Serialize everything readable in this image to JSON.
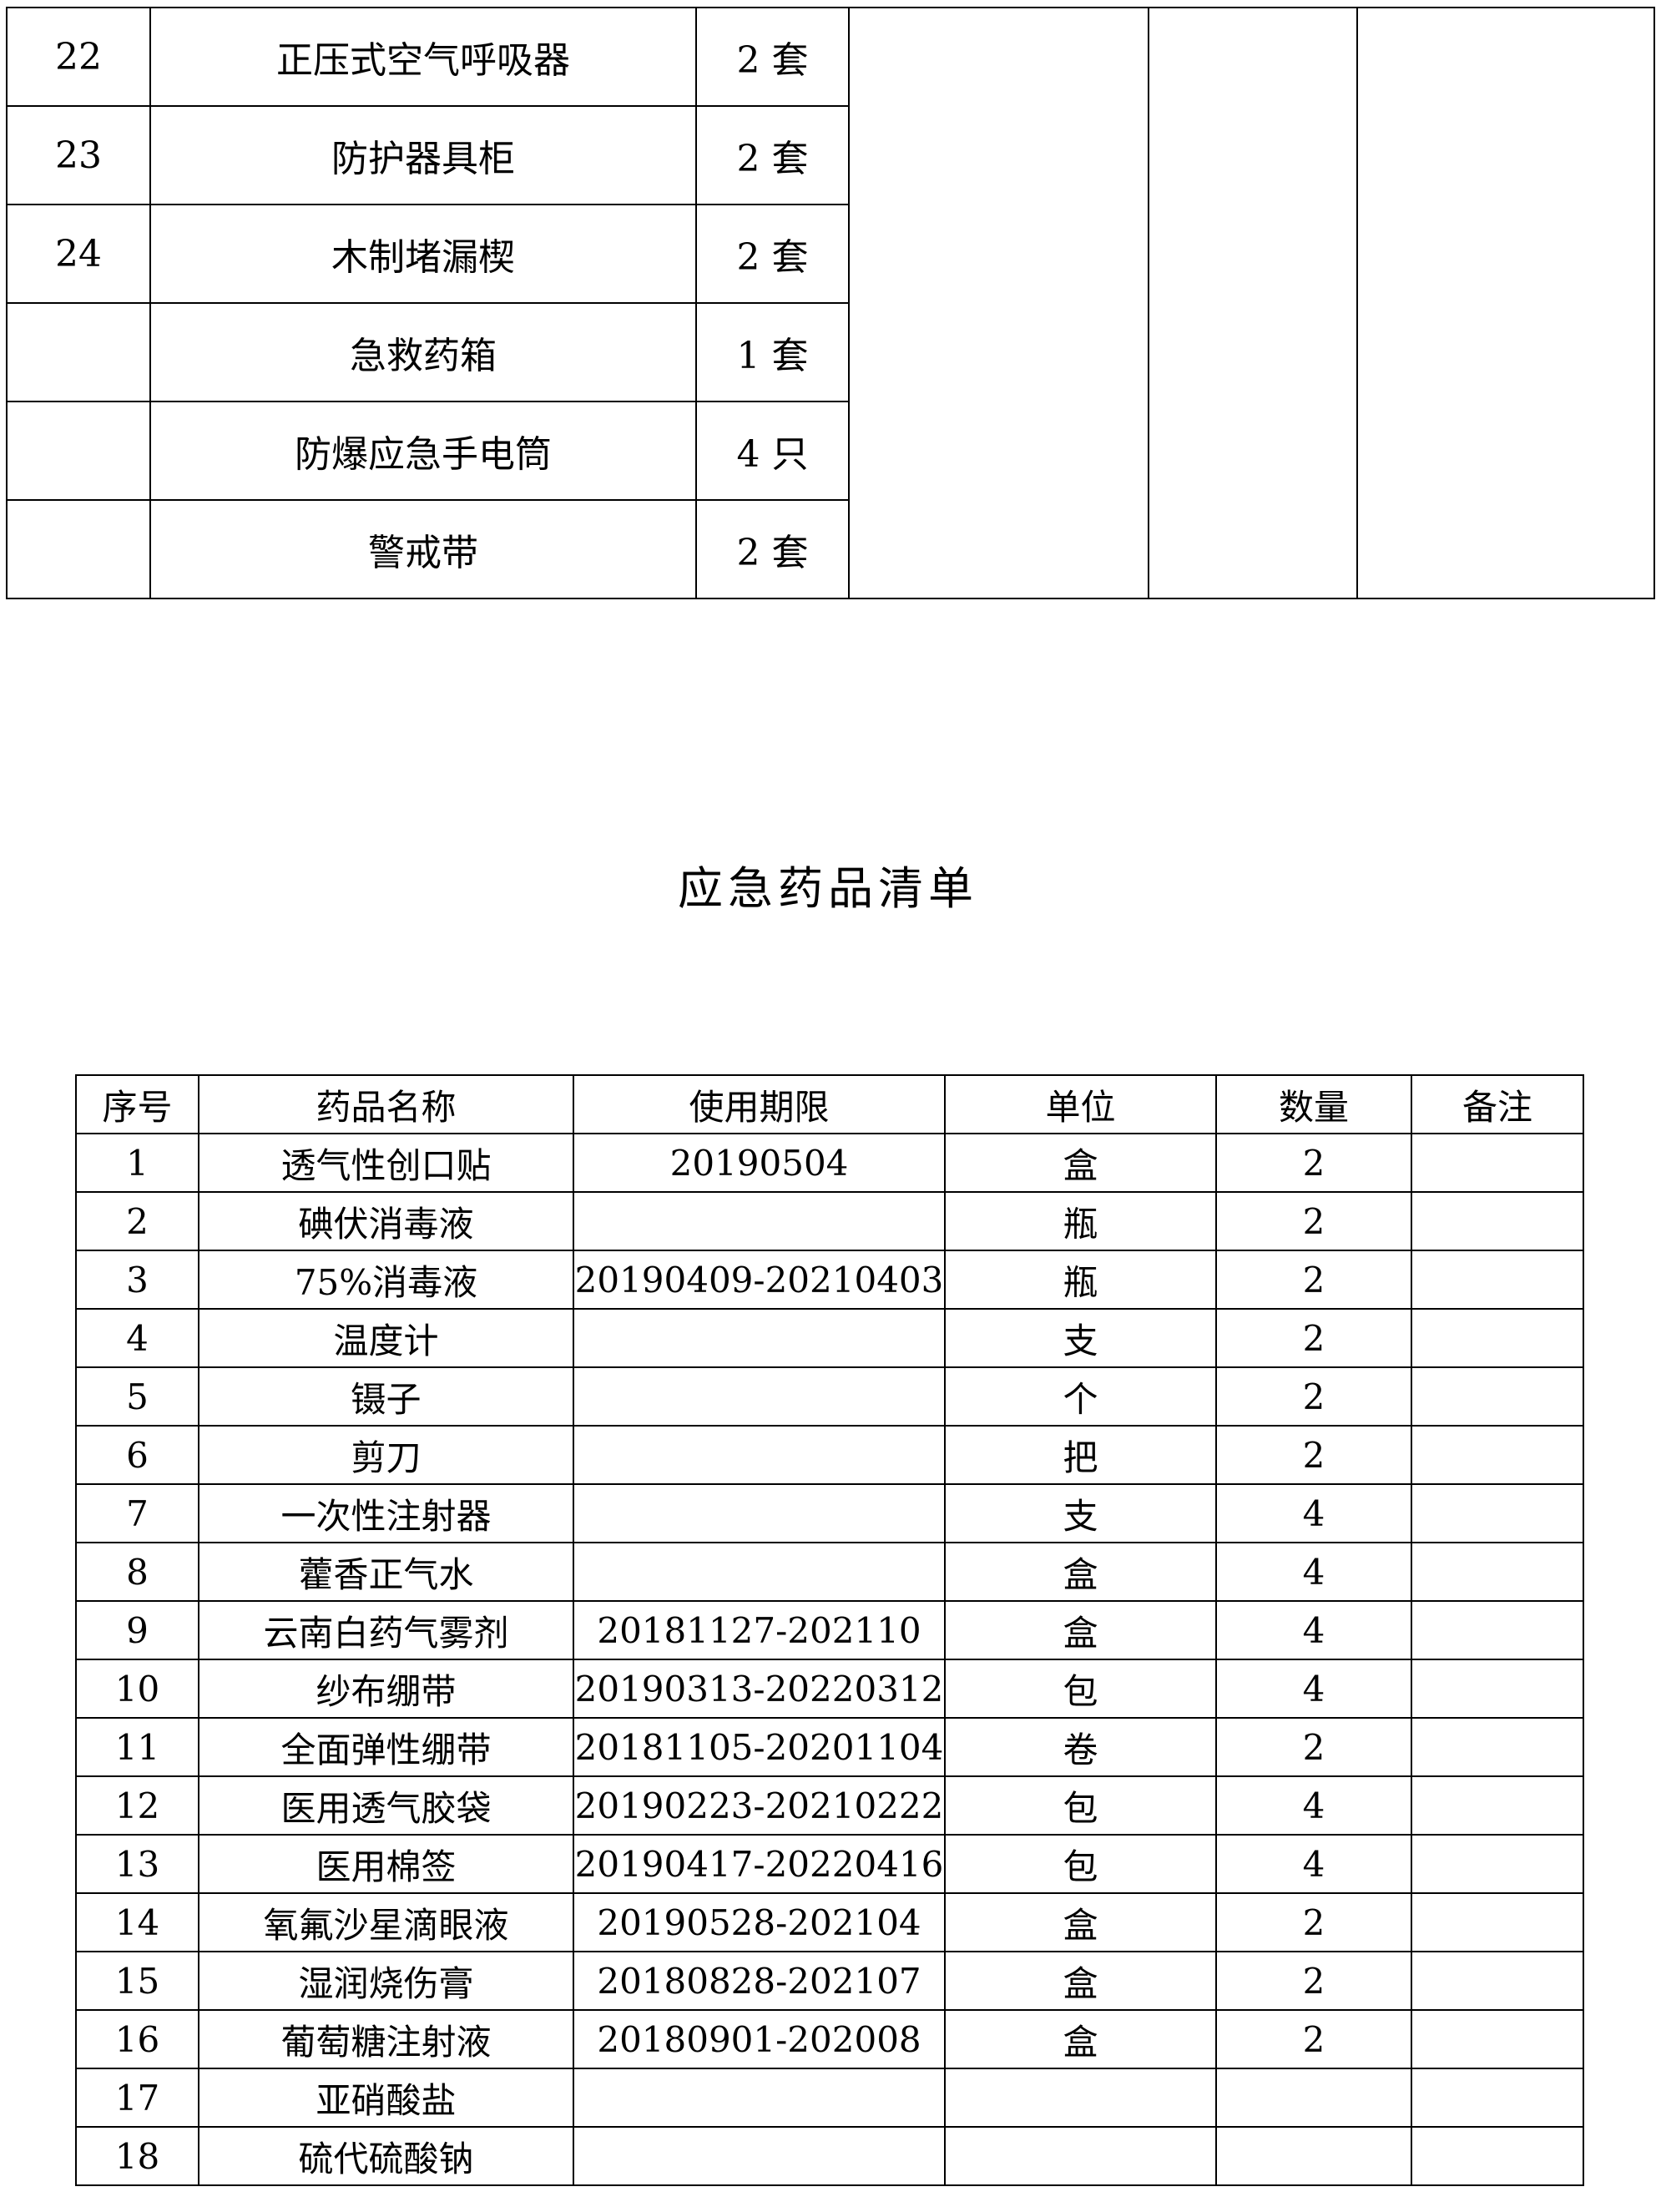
{
  "equipment_table": {
    "rows": [
      {
        "no": "22",
        "name": "正压式空气呼吸器",
        "qty": "2 套"
      },
      {
        "no": "23",
        "name": "防护器具柜",
        "qty": "2 套"
      },
      {
        "no": "24",
        "name": "木制堵漏楔",
        "qty": "2 套"
      },
      {
        "no": "",
        "name": "急救药箱",
        "qty": "1 套"
      },
      {
        "no": "",
        "name": "防爆应急手电筒",
        "qty": "4 只"
      },
      {
        "no": "",
        "name": "警戒带",
        "qty": "2 套"
      }
    ]
  },
  "title": "应急药品清单",
  "medicine_table": {
    "headers": [
      "序号",
      "药品名称",
      "使用期限",
      "单位",
      "数量",
      "备注"
    ],
    "rows": [
      [
        "1",
        "透气性创口贴",
        "20190504",
        "盒",
        "2",
        ""
      ],
      [
        "2",
        "碘伏消毒液",
        "",
        "瓶",
        "2",
        ""
      ],
      [
        "3",
        "75%消毒液",
        "20190409-20210403",
        "瓶",
        "2",
        ""
      ],
      [
        "4",
        "温度计",
        "",
        "支",
        "2",
        ""
      ],
      [
        "5",
        "镊子",
        "",
        "个",
        "2",
        ""
      ],
      [
        "6",
        "剪刀",
        "",
        "把",
        "2",
        ""
      ],
      [
        "7",
        "一次性注射器",
        "",
        "支",
        "4",
        ""
      ],
      [
        "8",
        "藿香正气水",
        "",
        "盒",
        "4",
        ""
      ],
      [
        "9",
        "云南白药气雾剂",
        "20181127-202110",
        "盒",
        "4",
        ""
      ],
      [
        "10",
        "纱布绷带",
        "20190313-20220312",
        "包",
        "4",
        ""
      ],
      [
        "11",
        "全面弹性绷带",
        "20181105-20201104",
        "卷",
        "2",
        ""
      ],
      [
        "12",
        "医用透气胶袋",
        "20190223-20210222",
        "包",
        "4",
        ""
      ],
      [
        "13",
        "医用棉签",
        "20190417-20220416",
        "包",
        "4",
        ""
      ],
      [
        "14",
        "氧氟沙星滴眼液",
        "20190528-202104",
        "盒",
        "2",
        ""
      ],
      [
        "15",
        "湿润烧伤膏",
        "20180828-202107",
        "盒",
        "2",
        ""
      ],
      [
        "16",
        "葡萄糖注射液",
        "20180901-202008",
        "盒",
        "2",
        ""
      ],
      [
        "17",
        "亚硝酸盐",
        "",
        "",
        "",
        ""
      ],
      [
        "18",
        "硫代硫酸钠",
        "",
        "",
        "",
        ""
      ]
    ]
  }
}
